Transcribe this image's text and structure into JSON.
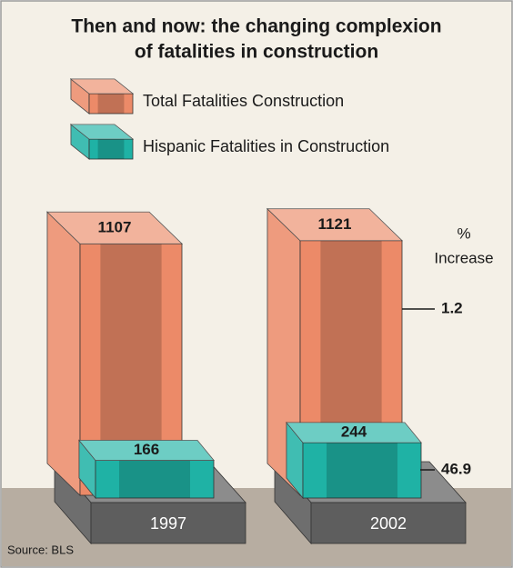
{
  "chart_data": {
    "type": "bar",
    "title": [
      "Then and now: the changing complexion",
      "of fatalities in construction"
    ],
    "categories": [
      "1997",
      "2002"
    ],
    "series": [
      {
        "name": "Total Fatalities Construction",
        "color": "#ec8a68",
        "values": [
          1107,
          1121
        ]
      },
      {
        "name": "Hispanic Fatalities in Construction",
        "color": "#1fb2a5",
        "values": [
          166,
          244
        ]
      }
    ],
    "pct_increase": {
      "label": [
        "%",
        "Increase"
      ],
      "values": [
        1.2,
        46.9
      ]
    },
    "source": "Source: BLS"
  }
}
